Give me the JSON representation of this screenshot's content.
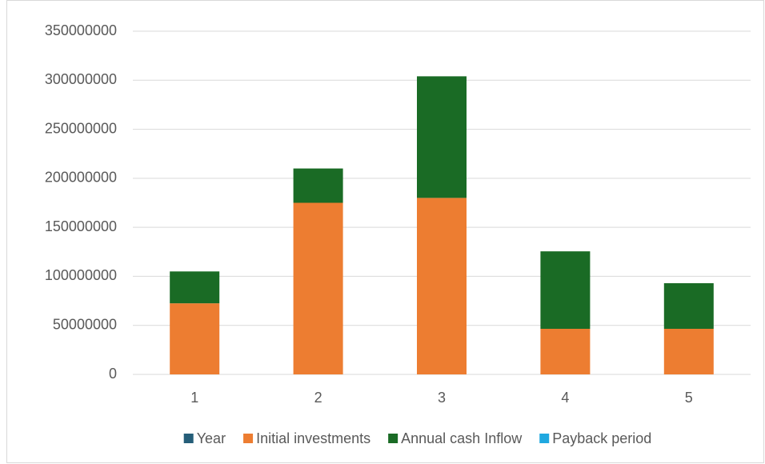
{
  "chart_data": {
    "type": "stacked_bar",
    "categories": [
      "1",
      "2",
      "3",
      "4",
      "5"
    ],
    "series": [
      {
        "name": "Year",
        "color": "#255e79",
        "values": [
          1,
          2,
          3,
          4,
          5
        ]
      },
      {
        "name": "Initial investments",
        "color": "#ed7d31",
        "values": [
          72500000,
          175000000,
          180000000,
          46500000,
          46500000
        ]
      },
      {
        "name": "Annual cash Inflow",
        "color": "#1a6b25",
        "values": [
          32500000,
          35000000,
          124000000,
          79000000,
          46500000
        ]
      },
      {
        "name": "Payback period",
        "color": "#1fa8e0",
        "values": [
          null,
          null,
          null,
          null,
          null
        ]
      }
    ],
    "ylim": [
      0,
      350000000
    ],
    "yticks": [
      0,
      50000000,
      100000000,
      150000000,
      200000000,
      250000000,
      300000000,
      350000000
    ],
    "grid": true,
    "legend": "bottom"
  }
}
